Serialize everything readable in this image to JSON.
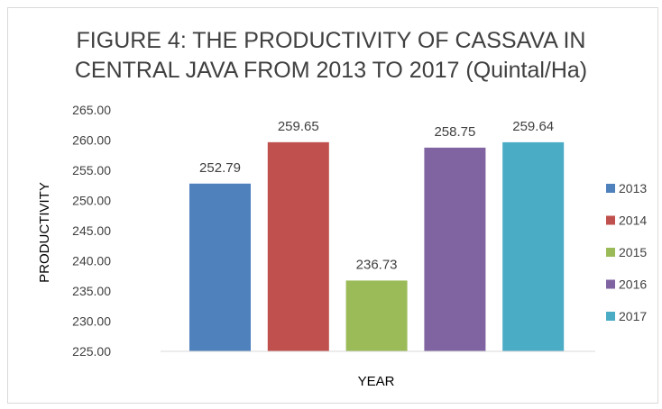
{
  "chart_data": {
    "type": "bar",
    "title": "FIGURE 4: THE PRODUCTIVITY OF CASSAVA IN CENTRAL JAVA FROM 2013 TO 2017 (Quintal/Ha)",
    "title_lines": [
      "FIGURE 4: THE PRODUCTIVITY OF CASSAVA IN",
      "CENTRAL JAVA FROM 2013 TO 2017 (Quintal/Ha)"
    ],
    "xlabel": "YEAR",
    "ylabel": "PRODUCTIVITY",
    "ylim": [
      225,
      265
    ],
    "yticks": [
      "225.00",
      "230.00",
      "235.00",
      "240.00",
      "245.00",
      "250.00",
      "255.00",
      "260.00",
      "265.00"
    ],
    "grid": false,
    "legend_position": "right",
    "series": [
      {
        "name": "2013",
        "value": 252.79,
        "label": "252.79",
        "color": "#4f81bd"
      },
      {
        "name": "2014",
        "value": 259.65,
        "label": "259.65",
        "color": "#c0504d"
      },
      {
        "name": "2015",
        "value": 236.73,
        "label": "236.73",
        "color": "#9bbb59"
      },
      {
        "name": "2016",
        "value": 258.75,
        "label": "258.75",
        "color": "#8064a2"
      },
      {
        "name": "2017",
        "value": 259.64,
        "label": "259.64",
        "color": "#4bacc6"
      }
    ]
  }
}
